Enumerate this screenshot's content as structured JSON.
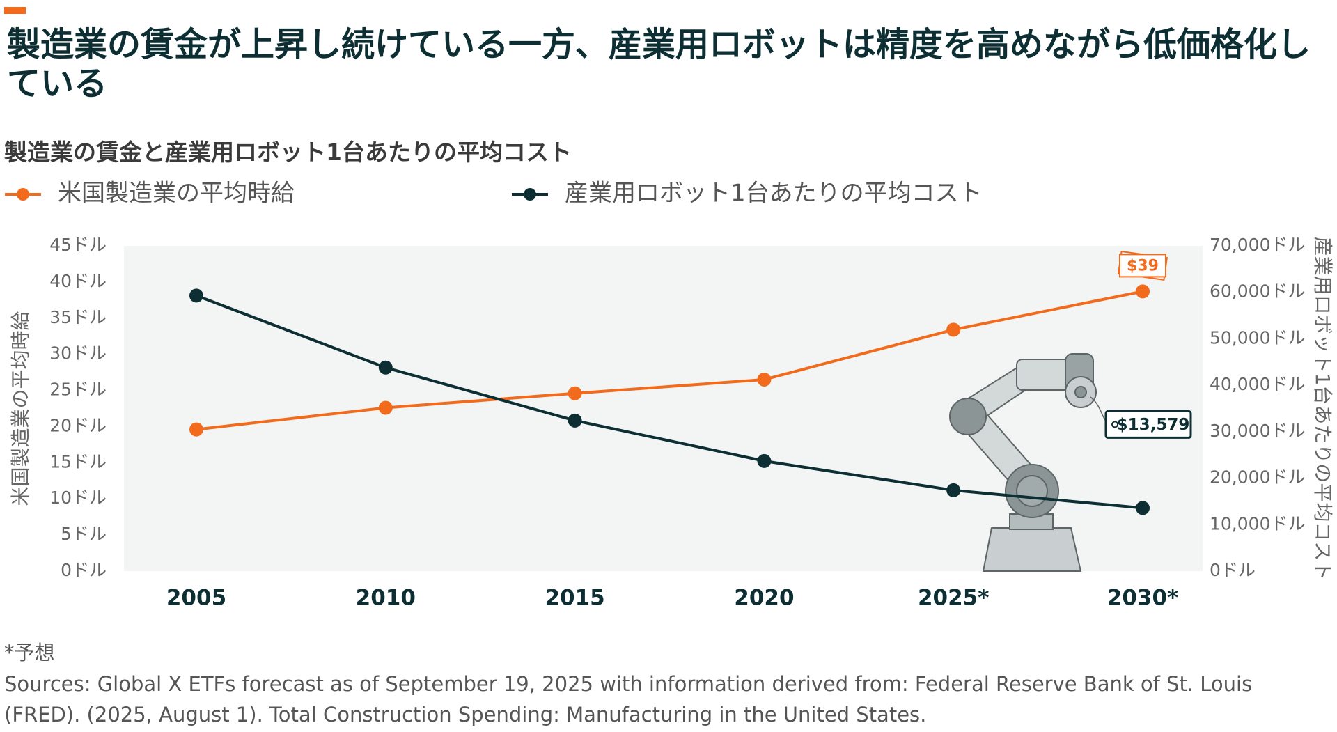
{
  "chart_data": {
    "type": "line",
    "title": "製造業の賃金が上昇し続けている一方、産業用ロボットは精度を高めながら低価格化している",
    "subtitle": "製造業の賃金と産業用ロボット1台あたりの平均コスト",
    "y_label": "米国製造業の平均時給",
    "y2_label": "産業用ロボット1台あたりの平均コスト",
    "categories": [
      "2005",
      "2010",
      "2015",
      "2020",
      "2025*",
      "2030*"
    ],
    "series": [
      {
        "name": "米国製造業の平均時給",
        "color": "#f26b1d",
        "values": [
          19.6,
          22.6,
          24.6,
          26.5,
          33.4,
          38.7
        ],
        "value_labels": [
          null,
          null,
          null,
          null,
          null,
          "$39"
        ]
      },
      {
        "name": "産業用ロボット1台あたりの平均コスト",
        "color": "#0d2f33",
        "axis": "y2",
        "values": [
          59300,
          43800,
          32400,
          23700,
          17400,
          13579
        ],
        "value_labels": [
          null,
          null,
          null,
          null,
          null,
          "$13,579"
        ]
      }
    ],
    "ylim": [
      0,
      45
    ],
    "yticks": [
      {
        "value": 0,
        "label": "0ドル"
      },
      {
        "value": 5,
        "label": "5ドル"
      },
      {
        "value": 10,
        "label": "10ドル"
      },
      {
        "value": 15,
        "label": "15ドル"
      },
      {
        "value": 20,
        "label": "20ドル"
      },
      {
        "value": 25,
        "label": "25ドル"
      },
      {
        "value": 30,
        "label": "30ドル"
      },
      {
        "value": 35,
        "label": "35ドル"
      },
      {
        "value": 40,
        "label": "40ドル"
      },
      {
        "value": 45,
        "label": "45ドル"
      }
    ],
    "y2lim": [
      0,
      70000
    ],
    "y2ticks": [
      {
        "value": 0,
        "label": "0ドル"
      },
      {
        "value": 10000,
        "label": "10,000ドル"
      },
      {
        "value": 20000,
        "label": "20,000ドル"
      },
      {
        "value": 30000,
        "label": "30,000ドル"
      },
      {
        "value": 40000,
        "label": "40,000ドル"
      },
      {
        "value": 50000,
        "label": "50,000ドル"
      },
      {
        "value": 60000,
        "label": "60,000ドル"
      },
      {
        "value": 70000,
        "label": "70,000ドル"
      }
    ],
    "grid": false,
    "note": "*予想",
    "sources": "Sources: Global X ETFs forecast as of September 19, 2025 with information derived from: Federal Reserve Bank of St. Louis (FRED). (2025, August 1). Total Construction Spending: Manufacturing in the United States."
  }
}
